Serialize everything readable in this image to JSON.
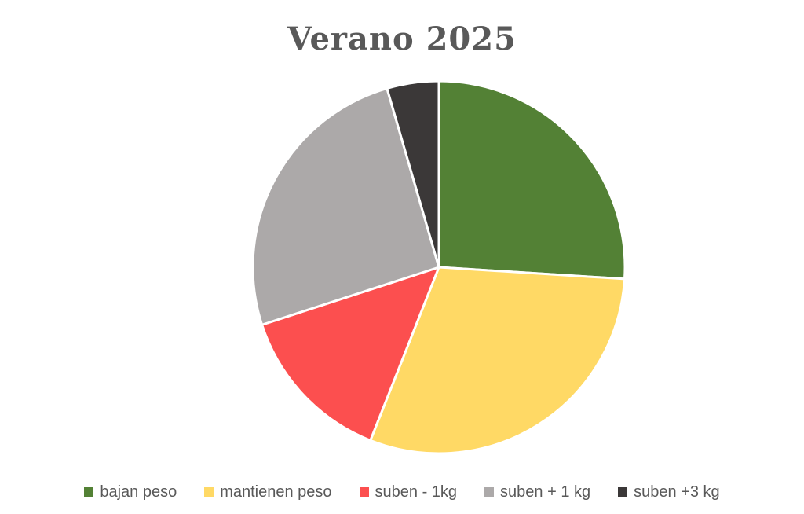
{
  "page": {
    "background_color": "#ffffff"
  },
  "chart_data": {
    "type": "pie",
    "title": "Verano 2025",
    "title_color": "#595959",
    "categories": [
      "bajan peso",
      "mantienen peso",
      "suben - 1kg",
      "suben + 1 kg",
      "suben +3 kg"
    ],
    "values": [
      26,
      30,
      14,
      25.5,
      4.5
    ],
    "colors": [
      "#538135",
      "#FFD965",
      "#FC4F4F",
      "#ACA9A9",
      "#3B3838"
    ],
    "slice_border_color": "#FFFFFF",
    "start_angle_deg": 0,
    "direction": "clockwise",
    "legend_position": "bottom",
    "legend_text_color": "#595959",
    "data_labels_shown": false
  }
}
